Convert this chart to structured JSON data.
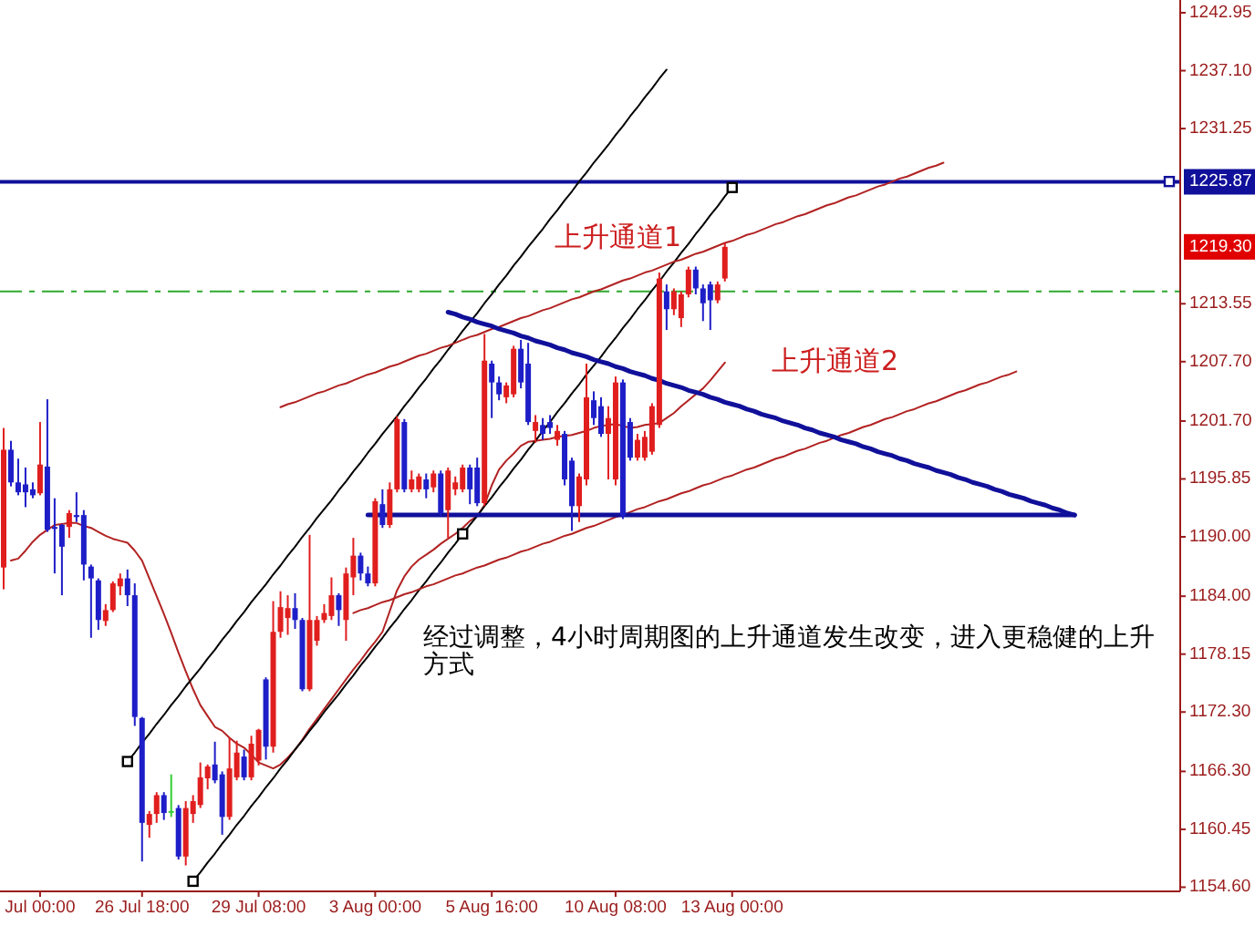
{
  "chart_data": {
    "type": "candlestick",
    "categories": [
      null,
      null,
      null,
      null,
      null,
      "Jul 00:00",
      null,
      null,
      null,
      null,
      null,
      null,
      null,
      null,
      null,
      null,
      null,
      null,
      null,
      "26 Jul 18:00",
      null,
      null,
      null,
      null,
      null,
      null,
      null,
      null,
      null,
      null,
      null,
      null,
      null,
      null,
      null,
      "29 Jul 08:00",
      null,
      null,
      null,
      null,
      null,
      null,
      null,
      null,
      null,
      null,
      null,
      null,
      null,
      null,
      null,
      "3 Aug 00:00",
      null,
      null,
      null,
      null,
      null,
      null,
      null,
      null,
      null,
      null,
      null,
      null,
      null,
      null,
      null,
      "5 Aug 16:00",
      null,
      null,
      null,
      null,
      null,
      null,
      null,
      null,
      null,
      null,
      null,
      null,
      null,
      null,
      null,
      null,
      "10 Aug 08:00",
      null,
      null,
      null,
      null,
      null,
      null,
      null,
      null,
      null,
      null,
      null,
      null,
      null,
      null,
      null,
      "13 Aug 00:00",
      null,
      null,
      null,
      null,
      null,
      null,
      null,
      null,
      null,
      null,
      null,
      null,
      null,
      null,
      null,
      null,
      null,
      null,
      null,
      null,
      null,
      null,
      null,
      null,
      null,
      null,
      null,
      null,
      null,
      null,
      null,
      null,
      null,
      null,
      null,
      null,
      null,
      null,
      null,
      null,
      null,
      null,
      null,
      null,
      null,
      null,
      null,
      null,
      null,
      null,
      null,
      null,
      null,
      null,
      null,
      null,
      null,
      null,
      null,
      null,
      null
    ],
    "ohlc": [
      [
        1186.9,
        1201.0,
        1184.7,
        1198.8
      ],
      [
        1198.8,
        1199.7,
        1195.1,
        1195.5
      ],
      [
        1195.5,
        1197.9,
        1194.2,
        1194.5
      ],
      [
        1195.3,
        1197.0,
        1193.0,
        1194.5
      ],
      [
        1194.8,
        1195.5,
        1193.9,
        1194.2
      ],
      [
        1194.4,
        1201.6,
        1194.2,
        1197.3
      ],
      [
        1197.1,
        1203.9,
        1190.5,
        1190.7
      ],
      [
        1191.0,
        1193.9,
        1186.3,
        1190.8
      ],
      [
        1191.2,
        1191.3,
        1184.1,
        1189.0
      ],
      [
        1191.0,
        1192.7,
        1189.9,
        1192.4
      ],
      [
        1192.2,
        1194.5,
        1191.5,
        1192.0
      ],
      [
        1192.2,
        1192.7,
        1185.6,
        1187.2
      ],
      [
        1187.0,
        1187.2,
        1179.8,
        1185.8
      ],
      [
        1185.6,
        1185.8,
        1180.6,
        1181.6
      ],
      [
        1181.5,
        1183.2,
        1181.0,
        1182.6
      ],
      [
        1182.6,
        1185.5,
        1182.4,
        1185.3
      ],
      [
        1185.0,
        1186.3,
        1184.1,
        1185.8
      ],
      [
        1185.8,
        1186.7,
        1183.0,
        1184.1
      ],
      [
        1184.1,
        1185.3,
        1170.9,
        1171.8
      ],
      [
        1171.7,
        1171.8,
        1157.2,
        1161.1
      ],
      [
        1160.9,
        1162.3,
        1159.6,
        1162.0
      ],
      [
        1162.0,
        1164.2,
        1161.1,
        1163.9
      ],
      [
        1163.9,
        1164.2,
        1161.4,
        1162.1
      ],
      [
        1162.3,
        1166.0,
        1161.7,
        1162.3
      ],
      [
        1162.6,
        1162.9,
        1157.4,
        1157.7
      ],
      [
        1157.7,
        1163.3,
        1156.8,
        1162.6
      ],
      [
        1162.0,
        1163.9,
        1161.1,
        1163.3
      ],
      [
        1162.9,
        1167.2,
        1162.6,
        1165.7
      ],
      [
        1165.6,
        1167.0,
        1164.5,
        1166.8
      ],
      [
        1167.0,
        1169.3,
        1165.1,
        1165.4
      ],
      [
        1166.0,
        1166.3,
        1159.9,
        1161.7
      ],
      [
        1161.7,
        1169.7,
        1161.4,
        1166.6
      ],
      [
        1165.7,
        1169.4,
        1165.4,
        1168.2
      ],
      [
        1167.8,
        1168.5,
        1165.4,
        1165.7
      ],
      [
        1165.7,
        1169.9,
        1165.4,
        1169.1
      ],
      [
        1167.4,
        1170.6,
        1166.9,
        1170.5
      ],
      [
        1175.6,
        1175.8,
        1167.5,
        1168.8
      ],
      [
        1168.8,
        1183.5,
        1168.2,
        1180.4
      ],
      [
        1180.4,
        1184.5,
        1179.8,
        1182.9
      ],
      [
        1181.8,
        1184.1,
        1180.1,
        1182.8
      ],
      [
        1182.8,
        1184.3,
        1180.7,
        1181.6
      ],
      [
        1181.6,
        1181.8,
        1174.4,
        1174.6
      ],
      [
        1174.6,
        1190.2,
        1174.4,
        1181.6
      ],
      [
        1179.5,
        1182.0,
        1179.0,
        1181.6
      ],
      [
        1181.6,
        1183.2,
        1181.3,
        1182.3
      ],
      [
        1182.0,
        1185.9,
        1181.6,
        1184.1
      ],
      [
        1184.1,
        1184.3,
        1181.0,
        1182.6
      ],
      [
        1181.6,
        1186.9,
        1179.5,
        1186.3
      ],
      [
        1185.9,
        1189.9,
        1184.1,
        1188.1
      ],
      [
        1188.1,
        1188.4,
        1185.6,
        1186.3
      ],
      [
        1186.3,
        1187.0,
        1185.0,
        1185.3
      ],
      [
        1185.3,
        1193.9,
        1185.0,
        1193.6
      ],
      [
        1193.3,
        1194.8,
        1190.9,
        1191.2
      ],
      [
        1191.2,
        1195.5,
        1190.9,
        1194.8
      ],
      [
        1194.8,
        1202.2,
        1194.5,
        1201.9
      ],
      [
        1201.6,
        1201.9,
        1194.5,
        1194.8
      ],
      [
        1194.8,
        1196.7,
        1194.5,
        1195.8
      ],
      [
        1194.8,
        1196.4,
        1194.5,
        1196.1
      ],
      [
        1195.8,
        1196.4,
        1193.9,
        1194.8
      ],
      [
        1195.0,
        1196.7,
        1194.5,
        1196.4
      ],
      [
        1196.4,
        1196.7,
        1192.1,
        1192.4
      ],
      [
        1192.7,
        1197.0,
        1189.9,
        1196.7
      ],
      [
        1194.8,
        1196.1,
        1194.2,
        1195.5
      ],
      [
        1194.8,
        1197.3,
        1194.5,
        1197.0
      ],
      [
        1197.0,
        1197.3,
        1193.3,
        1194.8
      ],
      [
        1197.0,
        1198.0,
        1193.1,
        1193.4
      ],
      [
        1193.4,
        1210.5,
        1193.1,
        1207.8
      ],
      [
        1207.5,
        1207.8,
        1202.0,
        1205.6
      ],
      [
        1205.6,
        1206.2,
        1203.8,
        1204.4
      ],
      [
        1204.1,
        1205.6,
        1203.5,
        1205.3
      ],
      [
        1204.4,
        1209.3,
        1204.1,
        1209.0
      ],
      [
        1209.0,
        1209.9,
        1205.0,
        1205.6
      ],
      [
        1207.5,
        1209.6,
        1201.3,
        1201.6
      ],
      [
        1200.7,
        1202.3,
        1199.5,
        1201.6
      ],
      [
        1201.3,
        1202.0,
        1199.8,
        1200.4
      ],
      [
        1201.6,
        1202.3,
        1200.4,
        1201.0
      ],
      [
        1199.8,
        1201.3,
        1199.2,
        1200.7
      ],
      [
        1200.4,
        1200.7,
        1195.2,
        1195.8
      ],
      [
        1197.7,
        1198.0,
        1190.6,
        1193.1
      ],
      [
        1193.1,
        1196.4,
        1191.5,
        1196.1
      ],
      [
        1195.8,
        1207.5,
        1195.2,
        1204.1
      ],
      [
        1203.8,
        1204.7,
        1201.3,
        1202.0
      ],
      [
        1203.2,
        1204.1,
        1200.1,
        1200.4
      ],
      [
        1200.4,
        1203.2,
        1195.8,
        1202.0
      ],
      [
        1195.8,
        1206.2,
        1195.2,
        1205.6
      ],
      [
        1205.6,
        1205.9,
        1191.8,
        1192.1
      ],
      [
        1201.6,
        1202.0,
        1197.7,
        1198.0
      ],
      [
        1198.0,
        1200.4,
        1197.7,
        1199.8
      ],
      [
        1198.0,
        1200.7,
        1197.7,
        1200.1
      ],
      [
        1198.6,
        1203.5,
        1198.3,
        1203.2
      ],
      [
        1201.3,
        1216.7,
        1201.0,
        1216.1
      ],
      [
        1214.8,
        1215.5,
        1210.9,
        1213.0
      ],
      [
        1213.0,
        1215.1,
        1212.4,
        1214.8
      ],
      [
        1212.1,
        1214.8,
        1211.2,
        1214.5
      ],
      [
        1214.5,
        1217.3,
        1214.2,
        1217.0
      ],
      [
        1217.0,
        1217.3,
        1214.5,
        1215.1
      ],
      [
        1215.1,
        1215.5,
        1211.8,
        1213.6
      ],
      [
        1215.5,
        1215.8,
        1210.9,
        1213.9
      ],
      [
        1213.9,
        1215.8,
        1213.6,
        1215.5
      ],
      [
        1216.1,
        1219.7,
        1215.8,
        1219.3
      ],
      null,
      null,
      null,
      null,
      null,
      null,
      null,
      null,
      null,
      null,
      null,
      null,
      null,
      null,
      null,
      null,
      null,
      null,
      null,
      null,
      null,
      null,
      null,
      null,
      null,
      null,
      null,
      null,
      null,
      null,
      null,
      null,
      null,
      null,
      null,
      null,
      null,
      null,
      null,
      null,
      null,
      null,
      null,
      null,
      null,
      null,
      null,
      null,
      null,
      null,
      null,
      null,
      null,
      null,
      null,
      null,
      null,
      null,
      null,
      null,
      null,
      null
    ],
    "colors": [
      "#e01e1e",
      "#1e1ec8",
      "#1e1ec8",
      "#1e1ec8",
      "#1e1ec8",
      "#e01e1e",
      "#1e1ec8",
      "#1e1ec8",
      "#1e1ec8",
      "#e01e1e",
      "#1e1ec8",
      "#1e1ec8",
      "#1e1ec8",
      "#1e1ec8",
      "#e01e1e",
      "#e01e1e",
      "#e01e1e",
      "#1e1ec8",
      "#1e1ec8",
      "#1e1ec8",
      "#e01e1e",
      "#e01e1e",
      "#1e1ec8",
      "#33cc33",
      "#1e1ec8",
      "#e01e1e",
      "#e01e1e",
      "#e01e1e",
      "#e01e1e",
      "#1e1ec8",
      "#1e1ec8",
      "#e01e1e",
      "#e01e1e",
      "#1e1ec8",
      "#e01e1e",
      "#e01e1e",
      "#1e1ec8",
      "#e01e1e",
      "#e01e1e",
      "#e01e1e",
      "#1e1ec8",
      "#1e1ec8",
      "#e01e1e",
      "#e01e1e",
      "#e01e1e",
      "#e01e1e",
      "#1e1ec8",
      "#e01e1e",
      "#e01e1e",
      "#1e1ec8",
      "#1e1ec8",
      "#e01e1e",
      "#1e1ec8",
      "#e01e1e",
      "#e01e1e",
      "#1e1ec8",
      "#e01e1e",
      "#e01e1e",
      "#1e1ec8",
      "#e01e1e",
      "#1e1ec8",
      "#e01e1e",
      "#e01e1e",
      "#e01e1e",
      "#1e1ec8",
      "#1e1ec8",
      "#e01e1e",
      "#1e1ec8",
      "#1e1ec8",
      "#e01e1e",
      "#e01e1e",
      "#1e1ec8",
      "#1e1ec8",
      "#e01e1e",
      "#1e1ec8",
      "#1e1ec8",
      "#e01e1e",
      "#1e1ec8",
      "#1e1ec8",
      "#e01e1e",
      "#e01e1e",
      "#1e1ec8",
      "#1e1ec8",
      "#e01e1e",
      "#e01e1e",
      "#1e1ec8",
      "#1e1ec8",
      "#e01e1e",
      "#e01e1e",
      "#e01e1e",
      "#e01e1e",
      "#1e1ec8",
      "#e01e1e",
      "#e01e1e",
      "#e01e1e",
      "#1e1ec8",
      "#1e1ec8",
      "#1e1ec8",
      "#e01e1e",
      "#e01e1e",
      null,
      null,
      null,
      null,
      null,
      null,
      null,
      null,
      null,
      null,
      null,
      null,
      null,
      null,
      null,
      null,
      null,
      null,
      null,
      null,
      null,
      null,
      null,
      null,
      null,
      null,
      null,
      null,
      null,
      null,
      null,
      null,
      null,
      null,
      null,
      null,
      null,
      null,
      null,
      null,
      null,
      null,
      null,
      null,
      null,
      null,
      null,
      null,
      null,
      null,
      null,
      null,
      null,
      null,
      null,
      null,
      null,
      null,
      null,
      null,
      null,
      null
    ],
    "ylim": [
      1154.18,
      1244.24
    ],
    "yticks": [
      1242.95,
      {
        "value": 1237.1,
        "label": "1237.10"
      },
      1231.25,
      1213.55,
      {
        "value": 1207.7,
        "label": "1207.70"
      },
      {
        "value": 1201.7,
        "label": "1201.70"
      },
      1195.85,
      {
        "value": 1190,
        "label": "1190.00"
      },
      {
        "value": 1184,
        "label": "1184.00"
      },
      1178.15,
      {
        "value": 1172.3,
        "label": "1172.30"
      },
      {
        "value": 1166.3,
        "label": "1166.30"
      },
      1160.45,
      {
        "value": 1154.6,
        "label": "1154.60"
      }
    ],
    "series": [
      {
        "type": "line",
        "color": "#b22222",
        "values": [
          null,
          1187.6,
          1187.8,
          1188.6,
          1189.5,
          1190.2,
          1190.7,
          1191.2,
          1191.3,
          1191.4,
          1191.4,
          1191.1,
          1190.9,
          1190.5,
          1190.1,
          1189.8,
          1189.6,
          1189.4,
          1188.6,
          1187.6,
          1185.8,
          1184.0,
          1182.2,
          1180.3,
          1178.3,
          1176.4,
          1174.6,
          1173.0,
          1171.9,
          1170.8,
          1170.4,
          1169.7,
          1169.1,
          1168.7,
          1168.0,
          1167.2,
          1166.9,
          1166.6,
          1167.0,
          1167.7,
          1168.5,
          1169.5,
          1170.6,
          1171.6,
          1172.6,
          1173.6,
          1174.6,
          1175.6,
          1176.6,
          1177.5,
          1178.5,
          1179.4,
          1180.4,
          1182.5,
          1184.6,
          1186.0,
          1187.0,
          1187.7,
          1188.2,
          1188.7,
          1189.3,
          1189.8,
          1190.3,
          1190.9,
          1191.6,
          1192.1,
          1193.2,
          1195.2,
          1196.8,
          1197.7,
          1198.4,
          1199.2,
          1199.6,
          1199.7,
          1199.8,
          1199.9,
          1200.1,
          1200.2,
          1200.3,
          1200.5,
          1200.7,
          1201.0,
          1201.2,
          1201.3,
          1201.4,
          1201.2,
          1201.0,
          1201.1,
          1201.3,
          1201.4,
          1201.5,
          1202.0,
          1202.5,
          1203.2,
          1203.8,
          1204.4,
          1205.0,
          1205.8,
          1206.7,
          1207.6,
          null,
          null,
          null,
          null,
          null,
          null,
          null,
          null,
          null,
          null,
          null,
          null,
          null,
          null,
          null,
          null,
          null,
          null,
          null,
          null,
          null,
          null,
          null,
          null,
          null,
          null,
          null,
          null,
          null,
          null,
          null,
          null,
          null,
          null,
          null,
          null,
          null,
          null,
          null,
          null,
          null,
          null,
          null,
          null,
          null,
          null,
          null,
          null,
          null,
          null,
          null,
          null,
          null,
          null,
          null,
          null,
          null,
          null,
          null,
          null,
          null,
          null
        ]
      },
      {
        "type": "line",
        "color": "#000000",
        "values": [
          null,
          null,
          null,
          null,
          null,
          null,
          null,
          null,
          null,
          null,
          null,
          null,
          null,
          null,
          null,
          null,
          null,
          1167.3,
          1168.2,
          1169.2,
          1170.1,
          1171.1,
          1172.0,
          1173.0,
          1173.9,
          1174.9,
          1175.8,
          1176.7,
          1177.7,
          1178.6,
          1179.6,
          1180.5,
          1181.5,
          1182.4,
          1183.4,
          1184.3,
          1185.2,
          1186.2,
          1187.1,
          1188.1,
          1189.0,
          1190.0,
          1190.9,
          1191.9,
          1192.8,
          1193.7,
          1194.7,
          1195.6,
          1196.6,
          1197.5,
          1198.5,
          1199.4,
          1200.4,
          1201.3,
          1202.2,
          1203.2,
          1204.1,
          1205.1,
          1206.0,
          1207.0,
          1207.9,
          1208.9,
          1209.8,
          1210.8,
          1211.7,
          1212.6,
          1213.6,
          1214.5,
          1215.5,
          1216.4,
          1217.4,
          1218.3,
          1219.3,
          1220.2,
          1221.1,
          1222.1,
          1223.0,
          1224.0,
          1224.9,
          1225.9,
          1226.8,
          1227.8,
          1228.7,
          1229.6,
          1230.6,
          1231.5,
          1232.5,
          1233.4,
          1234.4,
          1235.3,
          1236.3,
          1237.2,
          null,
          null,
          null,
          null,
          null,
          null,
          null,
          null,
          null,
          null,
          null,
          null,
          null,
          null,
          null,
          null,
          null,
          null,
          null,
          null,
          null,
          null,
          null,
          null,
          null,
          null,
          null,
          null,
          null,
          null,
          null,
          null,
          null,
          null,
          null,
          null,
          null,
          null,
          null,
          null,
          null,
          null,
          null,
          null,
          null,
          null,
          null,
          null,
          null,
          null,
          null,
          null,
          null,
          null,
          null,
          null,
          null,
          null,
          null,
          null,
          null,
          null,
          null,
          null,
          null,
          null,
          null,
          null,
          null,
          null
        ]
      },
      {
        "type": "line",
        "color": "#000000",
        "values": [
          null,
          null,
          null,
          null,
          null,
          null,
          null,
          null,
          null,
          null,
          null,
          null,
          null,
          null,
          null,
          null,
          null,
          null,
          null,
          null,
          null,
          null,
          null,
          null,
          null,
          null,
          1155.2,
          1156.1,
          1157.1,
          1158.0,
          1159.0,
          1159.9,
          1160.9,
          1161.8,
          1162.8,
          1163.7,
          1164.7,
          1165.6,
          1166.6,
          1167.5,
          1168.5,
          1169.4,
          1170.4,
          1171.3,
          1172.3,
          1173.2,
          1174.1,
          1175.1,
          1176.0,
          1177.0,
          1177.9,
          1178.9,
          1179.8,
          1180.8,
          1181.7,
          1182.7,
          1183.6,
          1184.6,
          1185.5,
          1186.5,
          1187.4,
          1188.4,
          1189.3,
          1190.3,
          1191.2,
          1192.1,
          1193.1,
          1194.0,
          1195.0,
          1195.9,
          1196.9,
          1197.8,
          1198.8,
          1199.7,
          1200.7,
          1201.6,
          1202.6,
          1203.5,
          1204.5,
          1205.4,
          1206.4,
          1207.3,
          1208.2,
          1209.2,
          1210.1,
          1211.1,
          1212.0,
          1213.0,
          1213.9,
          1214.9,
          1215.8,
          1216.8,
          1217.7,
          1218.7,
          1219.6,
          1220.6,
          1221.5,
          1222.5,
          1223.4,
          1224.4,
          1225.3,
          null,
          null,
          null,
          null,
          null,
          null,
          null,
          null,
          null,
          null,
          null,
          null,
          null,
          null,
          null,
          null,
          null,
          null,
          null,
          null,
          null,
          null,
          null,
          null,
          null,
          null,
          null,
          null,
          null,
          null,
          null,
          null,
          null,
          null,
          null,
          null,
          null,
          null,
          null,
          null,
          null,
          null,
          null,
          null,
          null,
          null,
          null,
          null,
          null,
          null,
          null,
          null,
          null,
          null,
          null,
          null,
          null,
          null,
          null,
          null,
          null
        ]
      },
      {
        "type": "line",
        "color": "#b22222",
        "values": [
          null,
          null,
          null,
          null,
          null,
          null,
          null,
          null,
          null,
          null,
          null,
          null,
          null,
          null,
          null,
          null,
          null,
          null,
          null,
          null,
          null,
          null,
          null,
          null,
          null,
          null,
          null,
          null,
          null,
          null,
          null,
          null,
          null,
          null,
          null,
          null,
          null,
          null,
          1203.1,
          1203.4,
          1203.6,
          1203.9,
          1204.2,
          1204.5,
          1204.7,
          1205.0,
          1205.3,
          1205.5,
          1205.8,
          1206.1,
          1206.4,
          1206.6,
          1206.9,
          1207.2,
          1207.4,
          1207.7,
          1208.0,
          1208.3,
          1208.5,
          1208.8,
          1209.1,
          1209.3,
          1209.6,
          1209.9,
          1210.2,
          1210.4,
          1210.7,
          1211.0,
          1211.2,
          1211.5,
          1211.8,
          1212.1,
          1212.3,
          1212.6,
          1212.9,
          1213.1,
          1213.4,
          1213.7,
          1214.0,
          1214.2,
          1214.5,
          1214.8,
          1215.0,
          1215.3,
          1215.6,
          1215.9,
          1216.1,
          1216.4,
          1216.7,
          1216.9,
          1217.2,
          1217.5,
          1217.8,
          1218.0,
          1218.3,
          1218.6,
          1218.8,
          1219.1,
          1219.4,
          1219.7,
          1219.9,
          1220.2,
          1220.5,
          1220.7,
          1221.0,
          1221.3,
          1221.6,
          1221.8,
          1222.1,
          1222.4,
          1222.6,
          1222.9,
          1223.2,
          1223.5,
          1223.7,
          1224.0,
          1224.3,
          1224.5,
          1224.8,
          1225.1,
          1225.4,
          1225.6,
          1225.9,
          1226.2,
          1226.4,
          1226.7,
          1227.0,
          1227.3,
          1227.5,
          1227.8,
          null,
          null,
          null,
          null,
          null,
          null,
          null,
          null,
          null,
          null,
          null,
          null,
          null,
          null,
          null,
          null,
          null,
          null,
          null,
          null,
          null,
          null,
          null,
          null,
          null,
          null,
          null,
          null,
          null,
          null,
          null,
          null
        ]
      },
      {
        "type": "line",
        "color": "#b22222",
        "values": [
          null,
          null,
          null,
          null,
          null,
          null,
          null,
          null,
          null,
          null,
          null,
          null,
          null,
          null,
          null,
          null,
          null,
          null,
          null,
          null,
          null,
          null,
          null,
          null,
          null,
          null,
          null,
          null,
          null,
          null,
          null,
          null,
          null,
          null,
          null,
          null,
          null,
          null,
          null,
          null,
          null,
          null,
          null,
          null,
          null,
          null,
          null,
          null,
          1182.3,
          1182.6,
          1182.8,
          1183.1,
          1183.4,
          1183.6,
          1183.9,
          1184.2,
          1184.4,
          1184.7,
          1185.0,
          1185.2,
          1185.5,
          1185.8,
          1186.1,
          1186.3,
          1186.6,
          1186.9,
          1187.1,
          1187.4,
          1187.7,
          1187.9,
          1188.2,
          1188.5,
          1188.7,
          1189.0,
          1189.3,
          1189.5,
          1189.8,
          1190.1,
          1190.3,
          1190.6,
          1190.9,
          1191.1,
          1191.4,
          1191.7,
          1192.0,
          1192.2,
          1192.5,
          1192.8,
          1193.0,
          1193.3,
          1193.6,
          1193.8,
          1194.1,
          1194.4,
          1194.6,
          1194.9,
          1195.2,
          1195.4,
          1195.7,
          1196.0,
          1196.2,
          1196.5,
          1196.8,
          1197.0,
          1197.3,
          1197.6,
          1197.9,
          1198.1,
          1198.4,
          1198.7,
          1198.9,
          1199.2,
          1199.5,
          1199.7,
          1200.0,
          1200.3,
          1200.5,
          1200.8,
          1201.1,
          1201.3,
          1201.6,
          1201.9,
          1202.1,
          1202.4,
          1202.7,
          1202.9,
          1203.2,
          1203.5,
          1203.7,
          1204.0,
          1204.3,
          1204.6,
          1204.8,
          1205.1,
          1205.4,
          1205.6,
          1205.9,
          1206.2,
          1206.4,
          1206.7,
          null,
          null,
          null,
          null,
          null,
          null,
          null,
          null,
          null,
          null,
          null,
          null,
          null,
          null,
          null,
          null,
          null,
          null,
          null,
          null,
          null,
          null
        ]
      },
      {
        "type": "line",
        "color": "#10109a",
        "values": [
          null,
          null,
          null,
          null,
          null,
          null,
          null,
          null,
          null,
          null,
          null,
          null,
          null,
          null,
          null,
          null,
          null,
          null,
          null,
          null,
          null,
          null,
          null,
          null,
          null,
          null,
          null,
          null,
          null,
          null,
          null,
          null,
          null,
          null,
          null,
          null,
          null,
          null,
          null,
          null,
          null,
          null,
          null,
          null,
          null,
          null,
          null,
          null,
          null,
          null,
          null,
          null,
          null,
          null,
          null,
          null,
          null,
          null,
          null,
          null,
          null,
          1212.7,
          1212.5,
          1212.2,
          1212.0,
          1211.7,
          1211.5,
          1211.3,
          1211.0,
          1210.8,
          1210.6,
          1210.3,
          1210.1,
          1209.8,
          1209.6,
          1209.4,
          1209.1,
          1208.9,
          1208.6,
          1208.4,
          1208.2,
          1207.9,
          1207.7,
          1207.5,
          1207.2,
          1207.0,
          1206.7,
          1206.5,
          1206.3,
          1206.0,
          1205.8,
          1205.5,
          1205.3,
          1205.1,
          1204.8,
          1204.6,
          1204.4,
          1204.1,
          1203.9,
          1203.6,
          1203.4,
          1203.2,
          1202.9,
          1202.7,
          1202.4,
          1202.2,
          1202.0,
          1201.7,
          1201.5,
          1201.3,
          1201.0,
          1200.8,
          1200.5,
          1200.3,
          1200.1,
          1199.8,
          1199.6,
          1199.4,
          1199.1,
          1198.9,
          1198.6,
          1198.4,
          1198.2,
          1197.9,
          1197.7,
          1197.4,
          1197.2,
          1197.0,
          1196.7,
          1196.5,
          1196.3,
          1196.0,
          1195.8,
          1195.5,
          1195.3,
          1195.1,
          1194.8,
          1194.6,
          1194.3,
          1194.1,
          1193.9,
          1193.6,
          1193.4,
          1193.2,
          1192.9,
          1192.7,
          1192.4,
          1192.2,
          null,
          null,
          null,
          null,
          null,
          null,
          null,
          null,
          null,
          null,
          null,
          null,
          null,
          null
        ]
      },
      {
        "type": "line",
        "color": "#10109a",
        "values": [
          null,
          null,
          null,
          null,
          null,
          null,
          null,
          null,
          null,
          null,
          null,
          null,
          null,
          null,
          null,
          null,
          null,
          null,
          null,
          null,
          null,
          null,
          null,
          null,
          null,
          null,
          null,
          null,
          null,
          null,
          null,
          null,
          null,
          null,
          null,
          null,
          null,
          null,
          null,
          null,
          null,
          null,
          null,
          null,
          null,
          null,
          null,
          null,
          null,
          null,
          1192.2,
          1192.2,
          1192.2,
          1192.2,
          1192.2,
          1192.2,
          1192.2,
          1192.2,
          1192.2,
          1192.2,
          1192.2,
          1192.2,
          1192.2,
          1192.2,
          1192.2,
          1192.2,
          1192.2,
          1192.2,
          1192.2,
          1192.2,
          1192.2,
          1192.2,
          1192.2,
          1192.2,
          1192.2,
          1192.2,
          1192.2,
          1192.2,
          1192.2,
          1192.2,
          1192.2,
          1192.2,
          1192.2,
          1192.2,
          1192.2,
          1192.2,
          1192.2,
          1192.2,
          1192.2,
          1192.2,
          1192.2,
          1192.2,
          1192.2,
          1192.2,
          1192.2,
          1192.2,
          1192.2,
          1192.2,
          1192.2,
          1192.2,
          1192.2,
          1192.2,
          1192.2,
          1192.2,
          1192.2,
          1192.2,
          1192.2,
          1192.2,
          1192.2,
          1192.2,
          1192.2,
          1192.2,
          1192.2,
          1192.2,
          1192.2,
          1192.2,
          1192.2,
          1192.2,
          1192.2,
          1192.2,
          1192.2,
          1192.2,
          1192.2,
          1192.2,
          1192.2,
          1192.2,
          1192.2,
          1192.2,
          1192.2,
          1192.2,
          1192.2,
          1192.2,
          1192.2,
          1192.2,
          1192.2,
          1192.2,
          1192.2,
          1192.2,
          1192.2,
          1192.2,
          1192.2,
          1192.2,
          1192.2,
          1192.2,
          1192.2,
          1192.2,
          1192.2,
          1192.2,
          null,
          null,
          null,
          null,
          null,
          null,
          null,
          null,
          null,
          null,
          null,
          null,
          null,
          null
        ]
      },
      {
        "type": "scatter",
        "color": "#000000",
        "marker": "square",
        "values": [
          null,
          null,
          null,
          null,
          null,
          null,
          null,
          null,
          null,
          null,
          null,
          null,
          null,
          null,
          null,
          null,
          null,
          1167.3,
          null,
          null,
          null,
          null,
          null,
          null,
          null,
          null,
          1155.2,
          null,
          null,
          null,
          null,
          null,
          null,
          null,
          null,
          null,
          null,
          null,
          null,
          null,
          null,
          null,
          null,
          null,
          null,
          null,
          null,
          null,
          null,
          null,
          null,
          null,
          null,
          null,
          null,
          null,
          null,
          null,
          null,
          null,
          null,
          null,
          null,
          1190.3,
          null,
          null,
          null,
          null,
          null,
          null,
          null,
          null,
          null,
          null,
          null,
          null,
          null,
          null,
          null,
          null,
          null,
          null,
          null,
          null,
          null,
          null,
          null,
          null,
          null,
          null,
          null,
          null,
          null,
          null,
          null,
          null,
          null,
          null,
          null,
          null,
          1225.3,
          null,
          null,
          null,
          null,
          null,
          null,
          null,
          null,
          null,
          null,
          null,
          null,
          null,
          null,
          null,
          null,
          null,
          null,
          null,
          null,
          null,
          null,
          null,
          null,
          null,
          null,
          null,
          null,
          null,
          null,
          null,
          null,
          null,
          null,
          null,
          null,
          null,
          null,
          null,
          null,
          null,
          null,
          null,
          null,
          null,
          null,
          null,
          null,
          null,
          null,
          null,
          null,
          null,
          null,
          null,
          null,
          null,
          null,
          null,
          null,
          null
        ]
      },
      {
        "type": "scatter",
        "color": "#10109a",
        "marker": "square",
        "values": [
          null,
          null,
          null,
          null,
          null,
          null,
          null,
          null,
          null,
          null,
          null,
          null,
          null,
          null,
          null,
          null,
          null,
          null,
          null,
          null,
          null,
          null,
          null,
          null,
          null,
          null,
          null,
          null,
          null,
          null,
          null,
          null,
          null,
          null,
          null,
          null,
          null,
          null,
          null,
          null,
          null,
          null,
          null,
          null,
          null,
          null,
          null,
          null,
          null,
          null,
          null,
          null,
          null,
          null,
          null,
          null,
          null,
          null,
          null,
          null,
          null,
          null,
          null,
          null,
          null,
          null,
          null,
          null,
          null,
          null,
          null,
          null,
          null,
          null,
          null,
          null,
          null,
          null,
          null,
          null,
          null,
          null,
          null,
          null,
          null,
          null,
          null,
          null,
          null,
          null,
          null,
          null,
          null,
          null,
          null,
          null,
          null,
          null,
          null,
          null,
          null,
          null,
          null,
          null,
          null,
          null,
          null,
          null,
          null,
          null,
          null,
          null,
          null,
          null,
          null,
          null,
          null,
          null,
          null,
          null,
          null,
          null,
          null,
          null,
          null,
          null,
          null,
          null,
          null,
          null,
          null,
          null,
          null,
          null,
          null,
          null,
          null,
          null,
          null,
          null,
          null,
          null,
          null,
          null,
          null,
          null,
          null,
          null,
          null,
          null,
          null,
          null,
          null,
          null,
          null,
          null,
          null,
          null,
          null,
          null,
          1225.9,
          null
        ]
      }
    ],
    "ref_lines": [
      {
        "axis": "y",
        "value": 1225.87,
        "label": "1225.87",
        "color": "#10109a"
      },
      {
        "axis": "y",
        "value": 1214.8,
        "color": "#2eaa2e",
        "line_style": "dashed"
      }
    ],
    "annotations": [
      "上升通道1",
      "上升通道2",
      "1219.30",
      "经过调整，4小时周期图的上升通道发生改变，进入更稳健的上升方式"
    ]
  }
}
